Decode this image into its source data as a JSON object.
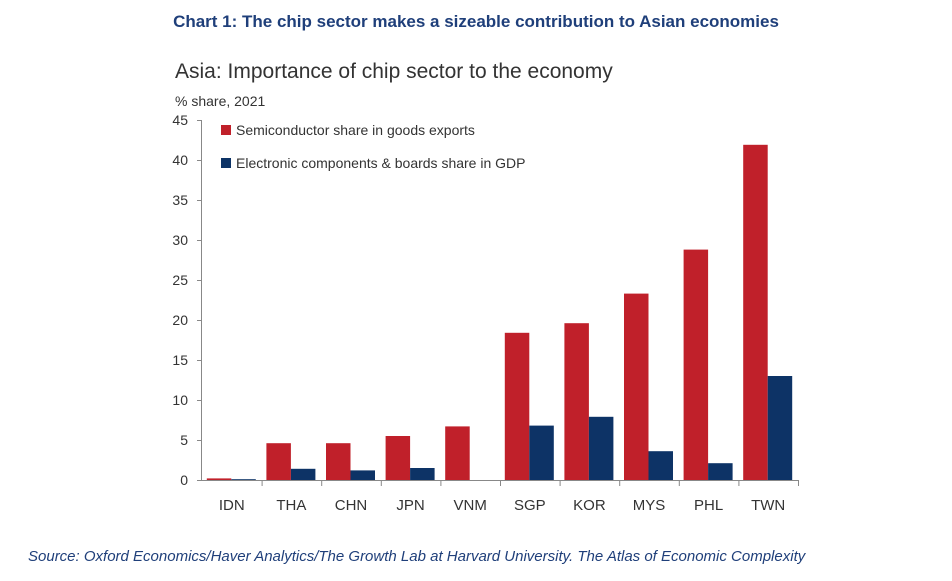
{
  "header": {
    "title": "Chart 1: The chip sector makes a sizeable contribution to Asian economies"
  },
  "footer": {
    "source": "Source: Oxford Economics/Haver Analytics/The Growth Lab at Harvard University. The Atlas of Economic Complexity"
  },
  "colors": {
    "semiconductor": "#c0202a",
    "electronics": "#0d3366",
    "title": "#1f3f7a"
  },
  "chart_data": {
    "type": "bar",
    "title": "Asia: Importance of chip sector to the economy",
    "ylabel": "% share, 2021",
    "xlabel": "",
    "ylim": [
      0,
      45
    ],
    "yticks": [
      0,
      5,
      10,
      15,
      20,
      25,
      30,
      35,
      40,
      45
    ],
    "categories": [
      "IDN",
      "THA",
      "CHN",
      "JPN",
      "VNM",
      "SGP",
      "KOR",
      "MYS",
      "PHL",
      "TWN"
    ],
    "series": [
      {
        "name": "Semiconductor share in goods exports",
        "values": [
          0.2,
          4.6,
          4.6,
          5.5,
          6.7,
          18.4,
          19.6,
          23.3,
          28.8,
          41.9
        ]
      },
      {
        "name": "Electronic components & boards share in GDP",
        "values": [
          0.1,
          1.4,
          1.2,
          1.5,
          0,
          6.8,
          7.9,
          3.6,
          2.1,
          13.0
        ]
      }
    ],
    "legend": "top-left",
    "grid": false
  }
}
